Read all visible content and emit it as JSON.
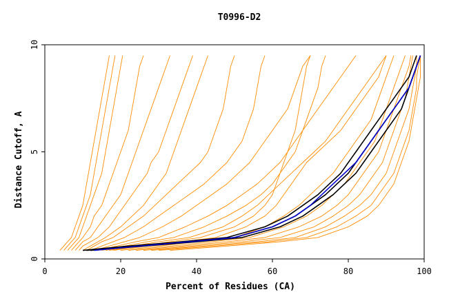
{
  "chart_data": {
    "type": "line",
    "title": "T0996-D2",
    "xlabel": "Percent of Residues (CA)",
    "ylabel": "Distance Cutoff, A",
    "xlim": [
      0,
      100
    ],
    "ylim": [
      0,
      10
    ],
    "x_ticks": [
      {
        "value": 0,
        "label": "0"
      },
      {
        "value": 20,
        "label": "20"
      },
      {
        "value": 40,
        "label": "40"
      },
      {
        "value": 60,
        "label": "60"
      },
      {
        "value": 80,
        "label": "80"
      },
      {
        "value": 100,
        "label": "100"
      }
    ],
    "y_ticks": [
      {
        "value": 0,
        "label": "0"
      },
      {
        "value": 5,
        "label": "5"
      },
      {
        "value": 10,
        "label": "10"
      }
    ],
    "grid": false,
    "legend": "none",
    "colors": {
      "orange": "#ff8c00",
      "black": "#000000",
      "blue": "#0000cd",
      "axis": "#000000"
    },
    "y_samples": [
      0.4,
      0.6,
      0.8,
      1.0,
      1.5,
      2.0,
      2.5,
      3.0,
      3.5,
      4.0,
      4.5,
      5.0,
      5.5,
      6.0,
      6.5,
      7.0,
      7.5,
      8.0,
      8.5,
      9.0,
      9.5
    ],
    "series": [
      {
        "color": "orange",
        "x": [
          4,
          5,
          6,
          7,
          8,
          9,
          10,
          10.5,
          11,
          11.5,
          12,
          12.5,
          13,
          13.5,
          14,
          14.5,
          15,
          15.5,
          16,
          16.5,
          17
        ]
      },
      {
        "color": "orange",
        "x": [
          5,
          6,
          7,
          8,
          9,
          10,
          11,
          12,
          12.5,
          13,
          13.5,
          14,
          14.5,
          15,
          15.5,
          16,
          16.5,
          17,
          17.5,
          18,
          18.5
        ]
      },
      {
        "color": "orange",
        "x": [
          6,
          7,
          8,
          9,
          10,
          11,
          12,
          13,
          14,
          15,
          15.5,
          16,
          16.5,
          17,
          17.5,
          18,
          18.5,
          19,
          19.5,
          20,
          20.5
        ]
      },
      {
        "color": "orange",
        "x": [
          7,
          8,
          9,
          10,
          12,
          13,
          15,
          16,
          17,
          18,
          19,
          20,
          21,
          22,
          22.5,
          23,
          23.5,
          24,
          24.5,
          25,
          26
        ]
      },
      {
        "color": "orange",
        "x": [
          8,
          9,
          10,
          12,
          14,
          16,
          18,
          20,
          21,
          22,
          23,
          24,
          25,
          26,
          27,
          28,
          29,
          30,
          31,
          32,
          33
        ]
      },
      {
        "color": "orange",
        "x": [
          9,
          10,
          12,
          14,
          17,
          19,
          21,
          23,
          25,
          27,
          28,
          30,
          31,
          32,
          33,
          34,
          35,
          36,
          37,
          38,
          39
        ]
      },
      {
        "color": "orange",
        "x": [
          10,
          12,
          14,
          16,
          20,
          23,
          26,
          28,
          30,
          32,
          33,
          34,
          35,
          36,
          37,
          38,
          39,
          40,
          41,
          42,
          43
        ]
      },
      {
        "color": "orange",
        "x": [
          11,
          13,
          15,
          18,
          22,
          26,
          29,
          32,
          35,
          38,
          41,
          43,
          44,
          45,
          46,
          47,
          47.5,
          48,
          48.5,
          49,
          50
        ]
      },
      {
        "color": "orange",
        "x": [
          12,
          15,
          18,
          21,
          26,
          30,
          34,
          38,
          42,
          45,
          48,
          50,
          52,
          53,
          54,
          55,
          55.5,
          56,
          56.5,
          57,
          58
        ]
      },
      {
        "color": "orange",
        "x": [
          13,
          17,
          21,
          25,
          31,
          36,
          40,
          44,
          48,
          51,
          54,
          56,
          58,
          60,
          62,
          64,
          65,
          66,
          67,
          68,
          70
        ]
      },
      {
        "color": "orange",
        "x": [
          14,
          19,
          24,
          30,
          37,
          43,
          48,
          52,
          56,
          59,
          62,
          64,
          66,
          68,
          70,
          72,
          74,
          76,
          78,
          80,
          82
        ]
      },
      {
        "color": "orange",
        "x": [
          15,
          21,
          27,
          34,
          42,
          48,
          53,
          57,
          60,
          62,
          64,
          66,
          67,
          68,
          69,
          70,
          71,
          72,
          72.5,
          73,
          74
        ]
      },
      {
        "color": "orange",
        "x": [
          16,
          23,
          30,
          38,
          47,
          52,
          56,
          59,
          62,
          65,
          68,
          71,
          74,
          76,
          78,
          80,
          82,
          84,
          86,
          88,
          90
        ]
      },
      {
        "color": "orange",
        "x": [
          17,
          25,
          33,
          41,
          50,
          55,
          58,
          60,
          61,
          62,
          63,
          64,
          65,
          66,
          66.5,
          67,
          67.5,
          68,
          68.5,
          69,
          70
        ]
      },
      {
        "color": "orange",
        "x": [
          18,
          27,
          36,
          45,
          53,
          58,
          61,
          63,
          65,
          67,
          69,
          72,
          75,
          78,
          80,
          82,
          84,
          86,
          88,
          89,
          90
        ]
      },
      {
        "color": "orange",
        "x": [
          20,
          30,
          40,
          50,
          58,
          63,
          67,
          70,
          73,
          76,
          78,
          80,
          82,
          84,
          86,
          87,
          88,
          89,
          90,
          91,
          92
        ]
      },
      {
        "color": "orange",
        "x": [
          22,
          33,
          44,
          54,
          63,
          69,
          73,
          76,
          79,
          81,
          83,
          85,
          87,
          88,
          89,
          90,
          91,
          92,
          93,
          94,
          95
        ]
      },
      {
        "color": "orange",
        "x": [
          24,
          36,
          48,
          58,
          67,
          73,
          77,
          80,
          82,
          84,
          86,
          88,
          89,
          90,
          91,
          92,
          93,
          94,
          95,
          96,
          96.5
        ]
      },
      {
        "color": "orange",
        "x": [
          26,
          39,
          52,
          62,
          71,
          76,
          80,
          83,
          85,
          87,
          89,
          90,
          91,
          92,
          93,
          94,
          95,
          95.5,
          96,
          96.5,
          97
        ]
      },
      {
        "color": "orange",
        "x": [
          28,
          42,
          56,
          66,
          74,
          79,
          83,
          86,
          88,
          90,
          91,
          92,
          93,
          94,
          95,
          96,
          96.5,
          97,
          97.5,
          98,
          98
        ]
      },
      {
        "color": "orange",
        "x": [
          30,
          45,
          59,
          69,
          77,
          82,
          86,
          88,
          90,
          92,
          93,
          94,
          95,
          96,
          96.5,
          97,
          97.5,
          98,
          98,
          98.5,
          99
        ]
      },
      {
        "color": "orange",
        "x": [
          33,
          48,
          62,
          72,
          80,
          85,
          88,
          90,
          92,
          93,
          94,
          95,
          96,
          96.5,
          97,
          97.5,
          98,
          98.5,
          99,
          99,
          99
        ]
      },
      {
        "color": "black",
        "x": [
          10,
          22,
          36,
          48,
          58,
          64,
          68,
          72,
          75,
          78,
          80,
          82,
          84,
          86,
          88,
          90,
          92,
          94,
          96,
          97,
          98
        ]
      },
      {
        "color": "black",
        "x": [
          11,
          24,
          38,
          50,
          60,
          66,
          70,
          74,
          77,
          80,
          82,
          84,
          86,
          88,
          90,
          92,
          94,
          96,
          97,
          98,
          99
        ]
      },
      {
        "color": "black",
        "x": [
          12,
          26,
          40,
          52,
          62,
          68,
          72,
          76,
          79,
          82,
          84,
          86,
          88,
          90,
          92,
          94,
          95,
          96,
          97,
          98,
          99
        ]
      },
      {
        "color": "blue",
        "x": [
          13,
          25,
          38,
          50,
          60,
          66,
          70,
          73,
          76,
          79,
          82,
          84,
          86,
          88,
          90,
          92,
          94,
          96,
          97,
          98,
          99
        ]
      }
    ]
  }
}
